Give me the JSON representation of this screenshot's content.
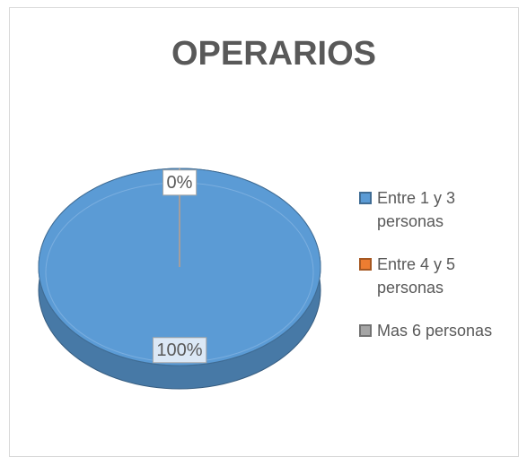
{
  "chart_data": {
    "type": "pie3d",
    "title": "OPERARIOS",
    "categories": [
      "Entre 1 y 3 personas",
      "Entre 4 y 5 personas",
      "Mas 6 personas"
    ],
    "values": [
      100,
      0,
      0
    ],
    "value_labels": [
      "100%",
      "0%",
      null
    ],
    "colors": [
      "#5b9bd5",
      "#ed7d31",
      "#a5a5a5"
    ],
    "legend": "right"
  }
}
